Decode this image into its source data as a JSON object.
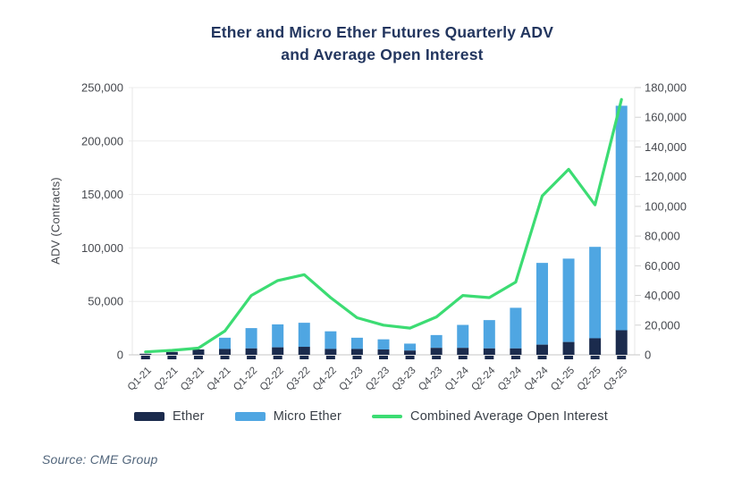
{
  "title": {
    "line1": "Ether and Micro Ether Futures Quarterly ADV",
    "line2": "and Average Open Interest"
  },
  "source": "Source: CME Group",
  "colors": {
    "ether": "#1b2b4d",
    "micro_ether": "#4fa6e2",
    "oi_line": "#3cdc73",
    "title_text": "#23365f",
    "axis_text": "#45484e",
    "gridline": "#ececec",
    "axis_edge": "#e7e7e7",
    "baseline": "#d2d2d2",
    "tick_dash": "#1b2b4d",
    "legend_text": "#393f47",
    "source_text": "#52667c",
    "background": "#ffffff"
  },
  "legend": {
    "items": [
      {
        "label": "Ether",
        "swatch": "bar",
        "color_key": "ether"
      },
      {
        "label": "Micro Ether",
        "swatch": "bar",
        "color_key": "micro_ether"
      },
      {
        "label": "Combined Average Open Interest",
        "swatch": "line",
        "color_key": "oi_line"
      }
    ]
  },
  "chart_data": {
    "type": "bar",
    "subtype": "stacked-bars-with-line-combo",
    "title": "Ether and Micro Ether Futures Quarterly ADV and Average Open Interest",
    "ylabel_left": "ADV (Contracts)",
    "ylabel_right": "",
    "grid": "horizontal",
    "legend_position": "bottom",
    "categories": [
      "Q1-21",
      "Q2-21",
      "Q3-21",
      "Q4-21",
      "Q1-22",
      "Q2-22",
      "Q3-22",
      "Q4-22",
      "Q1-23",
      "Q2-23",
      "Q3-23",
      "Q4-23",
      "Q1-24",
      "Q2-24",
      "Q3-24",
      "Q4-24",
      "Q1-25",
      "Q2-25",
      "Q3-25"
    ],
    "ylim_left": [
      0,
      250000
    ],
    "ytick_step_left": 50000,
    "ylim_right": [
      0,
      180000
    ],
    "ytick_step_right": 20000,
    "series": [
      {
        "name": "Ether",
        "type": "bar",
        "stack": true,
        "axis": "left",
        "values": [
          1000,
          2700,
          5000,
          5500,
          6000,
          7000,
          7500,
          5500,
          5500,
          5000,
          4000,
          6500,
          6500,
          6000,
          6000,
          9500,
          12000,
          15500,
          23000
        ]
      },
      {
        "name": "Micro Ether",
        "type": "bar",
        "stack": true,
        "axis": "left",
        "values": [
          0,
          0,
          0,
          10500,
          19000,
          21500,
          22500,
          16500,
          10500,
          9500,
          6500,
          12000,
          21500,
          26500,
          38000,
          76500,
          78000,
          85500,
          210000
        ]
      },
      {
        "name": "Combined Average Open Interest",
        "type": "line",
        "axis": "right",
        "values": [
          2000,
          3000,
          4500,
          16000,
          40000,
          50000,
          54000,
          38500,
          25000,
          20000,
          18000,
          25500,
          40000,
          38500,
          49000,
          107000,
          125000,
          101000,
          172000
        ]
      }
    ]
  }
}
